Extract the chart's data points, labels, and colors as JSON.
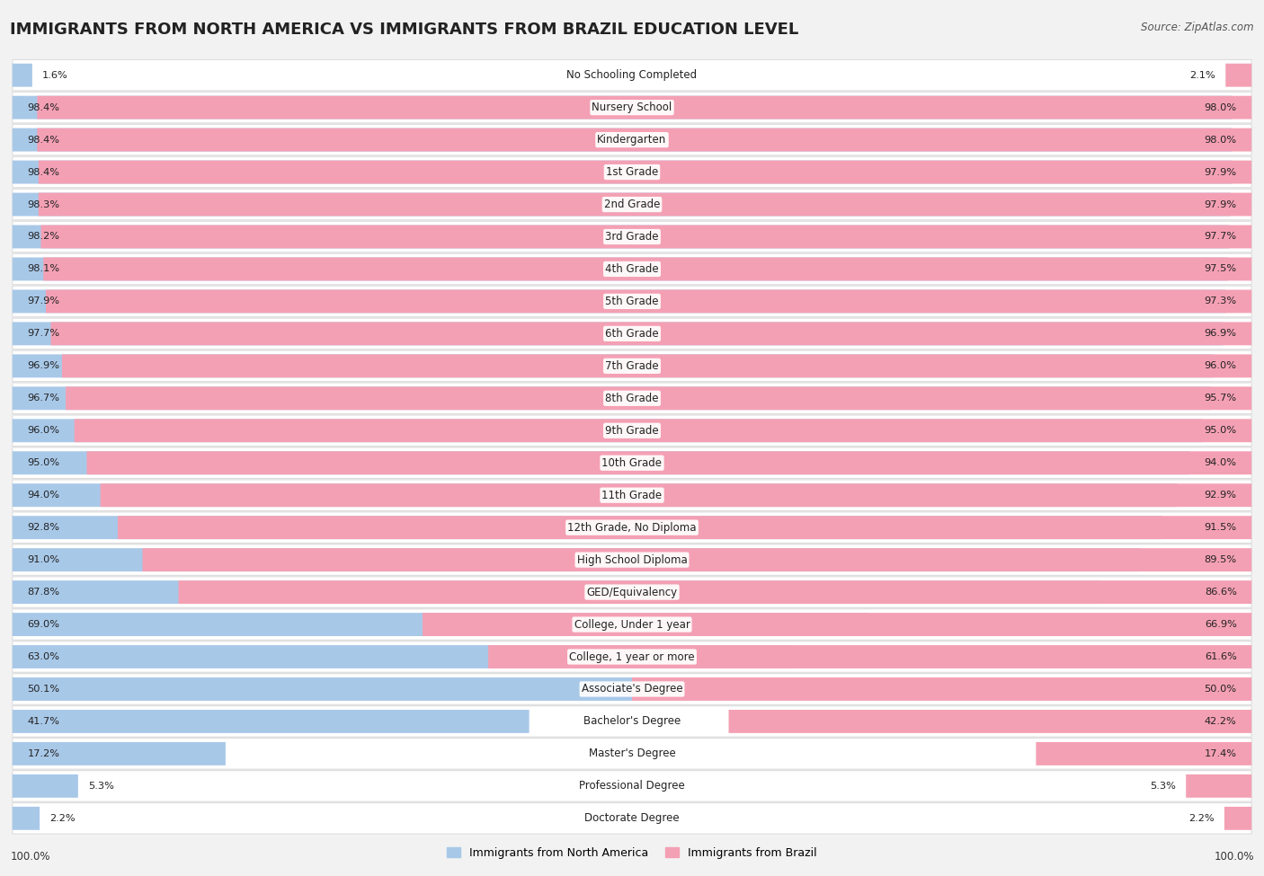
{
  "title": "IMMIGRANTS FROM NORTH AMERICA VS IMMIGRANTS FROM BRAZIL EDUCATION LEVEL",
  "source": "Source: ZipAtlas.com",
  "categories": [
    "No Schooling Completed",
    "Nursery School",
    "Kindergarten",
    "1st Grade",
    "2nd Grade",
    "3rd Grade",
    "4th Grade",
    "5th Grade",
    "6th Grade",
    "7th Grade",
    "8th Grade",
    "9th Grade",
    "10th Grade",
    "11th Grade",
    "12th Grade, No Diploma",
    "High School Diploma",
    "GED/Equivalency",
    "College, Under 1 year",
    "College, 1 year or more",
    "Associate's Degree",
    "Bachelor's Degree",
    "Master's Degree",
    "Professional Degree",
    "Doctorate Degree"
  ],
  "north_america": [
    1.6,
    98.4,
    98.4,
    98.4,
    98.3,
    98.2,
    98.1,
    97.9,
    97.7,
    96.9,
    96.7,
    96.0,
    95.0,
    94.0,
    92.8,
    91.0,
    87.8,
    69.0,
    63.0,
    50.1,
    41.7,
    17.2,
    5.3,
    2.2
  ],
  "brazil": [
    2.1,
    98.0,
    98.0,
    97.9,
    97.9,
    97.7,
    97.5,
    97.3,
    96.9,
    96.0,
    95.7,
    95.0,
    94.0,
    92.9,
    91.5,
    89.5,
    86.6,
    66.9,
    61.6,
    50.0,
    42.2,
    17.4,
    5.3,
    2.2
  ],
  "color_north_america": "#a8c8e8",
  "color_brazil": "#f4a0b4",
  "bg_color": "#f2f2f2",
  "bar_bg_color": "#ffffff",
  "row_bg_color": "#f8f8f8",
  "title_fontsize": 13,
  "label_fontsize": 8.5,
  "value_fontsize": 8.2
}
